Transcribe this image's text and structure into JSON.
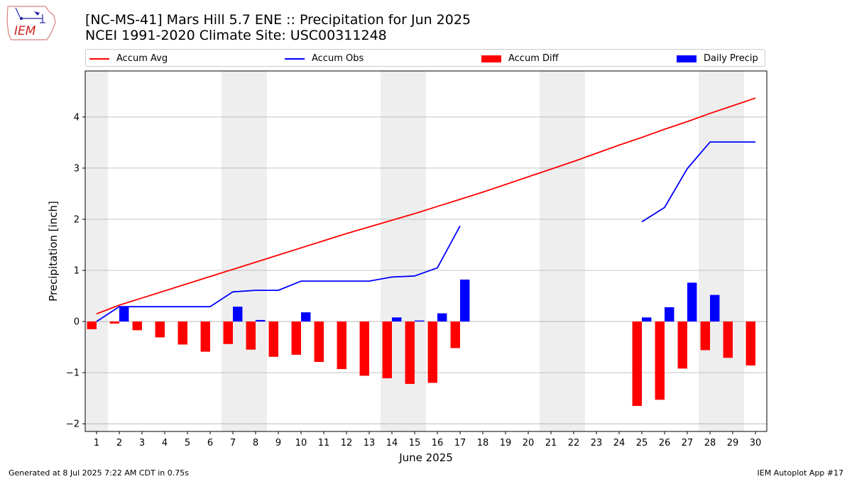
{
  "logo": {
    "text": "IEM",
    "color": "#cc2222"
  },
  "header": {
    "title_line1": "[NC-MS-41] Mars Hill 5.7 ENE :: Precipitation for Jun 2025",
    "title_line2": "NCEI 1991-2020 Climate Site: USC00311248"
  },
  "legend": {
    "accum_avg": "Accum Avg",
    "accum_obs": "Accum Obs",
    "accum_diff": "Accum Diff",
    "daily_precip": "Daily Precip"
  },
  "footer": {
    "generated": "Generated at 8 Jul 2025 7:22 AM CDT in 0.75s",
    "app": "IEM Autoplot App #17"
  },
  "chart_data": {
    "type": "bar",
    "xlabel": "June 2025",
    "ylabel": "Precipitation [inch]",
    "xlim": [
      0.5,
      30.5
    ],
    "ylim": [
      -2.15,
      4.9
    ],
    "yticks": [
      -2,
      -1,
      0,
      1,
      2,
      3,
      4
    ],
    "ytick_labels": [
      "−2",
      "−1",
      "0",
      "1",
      "2",
      "3",
      "4"
    ],
    "days": [
      1,
      2,
      3,
      4,
      5,
      6,
      7,
      8,
      9,
      10,
      11,
      12,
      13,
      14,
      15,
      16,
      17,
      18,
      19,
      20,
      21,
      22,
      23,
      24,
      25,
      26,
      27,
      28,
      29,
      30
    ],
    "weekend_shading": [
      [
        0.5,
        1.5
      ],
      [
        6.5,
        8.5
      ],
      [
        13.5,
        15.5
      ],
      [
        20.5,
        22.5
      ],
      [
        27.5,
        29.5
      ]
    ],
    "grid": "horizontal",
    "legend_position": "top",
    "colors": {
      "accum_avg": "#ff0000",
      "accum_obs": "#0000ff",
      "accum_diff": "#ff0000",
      "daily_precip": "#0000ff",
      "shade": "#eeeeee",
      "grid": "#b0b0b0"
    },
    "series": [
      {
        "name": "Accum Avg",
        "kind": "line",
        "values": [
          0.15,
          0.32,
          0.46,
          0.6,
          0.74,
          0.88,
          1.02,
          1.16,
          1.3,
          1.44,
          1.58,
          1.72,
          1.85,
          1.98,
          2.11,
          2.25,
          2.39,
          2.53,
          2.68,
          2.83,
          2.98,
          3.13,
          3.29,
          3.45,
          3.6,
          3.76,
          3.91,
          4.07,
          4.22,
          4.37
        ]
      },
      {
        "name": "Accum Obs",
        "kind": "line",
        "values": [
          0.0,
          0.29,
          0.29,
          0.29,
          0.29,
          0.29,
          0.58,
          0.61,
          0.61,
          0.79,
          0.79,
          0.79,
          0.79,
          0.87,
          0.89,
          1.05,
          1.87,
          null,
          null,
          null,
          null,
          null,
          null,
          null,
          1.95,
          2.23,
          2.99,
          3.51,
          3.51,
          3.51
        ]
      },
      {
        "name": "Accum Diff",
        "kind": "bar",
        "values": [
          -0.15,
          -0.04,
          -0.17,
          -0.31,
          -0.45,
          -0.59,
          -0.44,
          -0.55,
          -0.69,
          -0.65,
          -0.79,
          -0.93,
          -1.06,
          -1.11,
          -1.22,
          -1.2,
          -0.52,
          null,
          null,
          null,
          null,
          null,
          null,
          null,
          -1.65,
          -1.53,
          -0.92,
          -0.56,
          -0.71,
          -0.86
        ]
      },
      {
        "name": "Daily Precip",
        "kind": "bar",
        "values": [
          0.0,
          0.29,
          0.0,
          0.0,
          0.0,
          0.0,
          0.29,
          0.03,
          0.0,
          0.18,
          0.0,
          0.0,
          0.0,
          0.08,
          0.02,
          0.16,
          0.82,
          null,
          null,
          null,
          null,
          null,
          null,
          null,
          0.08,
          0.28,
          0.76,
          0.52,
          0.0,
          0.0
        ]
      }
    ]
  }
}
